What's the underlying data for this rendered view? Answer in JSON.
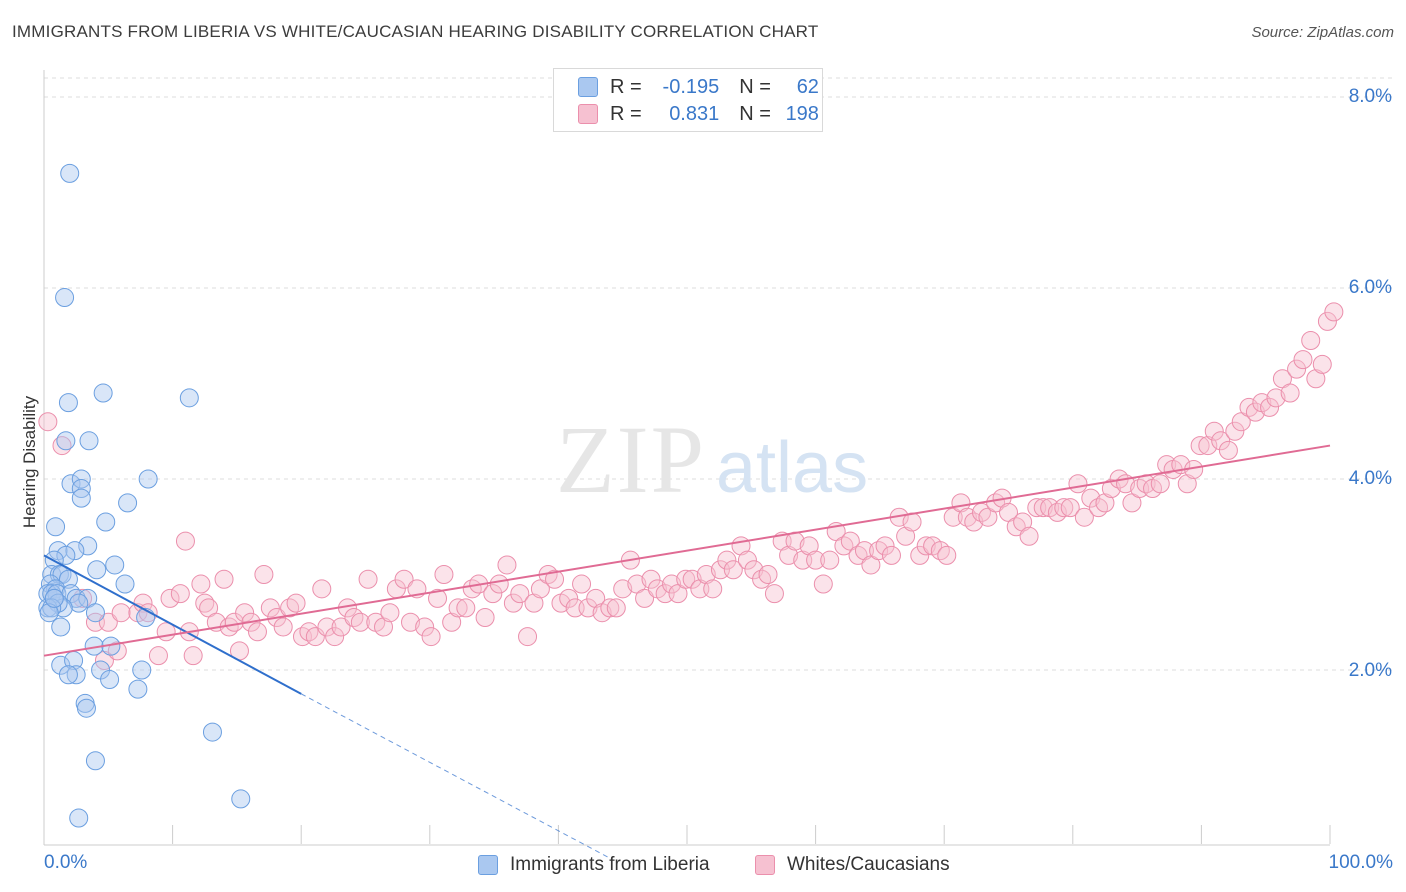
{
  "title": "IMMIGRANTS FROM LIBERIA VS WHITE/CAUCASIAN HEARING DISABILITY CORRELATION CHART",
  "source": "Source: ZipAtlas.com",
  "watermark": {
    "zip": "ZIP",
    "atlas": "atlas"
  },
  "legend": {
    "rows": [
      {
        "r_label": "R =",
        "r_value": "-0.195",
        "n_label": "N =",
        "n_value": "62"
      },
      {
        "r_label": "R =",
        "r_value": "0.831",
        "n_label": "N =",
        "n_value": "198"
      }
    ]
  },
  "bottom_legend": [
    "Immigrants from Liberia",
    "Whites/Caucasians"
  ],
  "colors": {
    "blue_fill": "#aac8f0",
    "blue_stroke": "#6b9fe0",
    "blue_line": "#2f6fcc",
    "pink_fill": "#f6c1d1",
    "pink_stroke": "#eb8fac",
    "pink_line": "#e06b94",
    "tick_text": "#3a78c9",
    "grid": "#dddddd"
  },
  "chart_data": {
    "type": "scatter",
    "ylabel": "Hearing Disability",
    "xlabel": "",
    "x_tick_labels": [
      "0.0%",
      "100.0%"
    ],
    "y_tick_labels": [
      "2.0%",
      "4.0%",
      "6.0%",
      "8.0%"
    ],
    "y_ticks": [
      2,
      4,
      6,
      8
    ],
    "xlim": [
      0,
      100
    ],
    "ylim": [
      0,
      8.3
    ],
    "grid": true,
    "series": [
      {
        "name": "Immigrants from Liberia",
        "trend": {
          "x0": 0,
          "y0": 3.2,
          "x1": 20,
          "y1": 1.75,
          "dash_to_x": 44,
          "dash_to_y": 0.03
        },
        "points": [
          [
            2.0,
            7.2
          ],
          [
            1.6,
            5.9
          ],
          [
            1.9,
            4.8
          ],
          [
            4.6,
            4.9
          ],
          [
            11.3,
            4.85
          ],
          [
            1.7,
            4.4
          ],
          [
            3.5,
            4.4
          ],
          [
            8.1,
            4.0
          ],
          [
            2.1,
            3.95
          ],
          [
            2.9,
            4.0
          ],
          [
            2.9,
            3.9
          ],
          [
            2.9,
            3.8
          ],
          [
            6.5,
            3.75
          ],
          [
            0.9,
            3.5
          ],
          [
            4.8,
            3.55
          ],
          [
            3.4,
            3.3
          ],
          [
            1.1,
            3.25
          ],
          [
            2.4,
            3.25
          ],
          [
            1.7,
            3.2
          ],
          [
            0.8,
            3.15
          ],
          [
            5.5,
            3.1
          ],
          [
            4.1,
            3.05
          ],
          [
            0.6,
            3.0
          ],
          [
            1.2,
            3.0
          ],
          [
            1.4,
            3.0
          ],
          [
            1.9,
            2.95
          ],
          [
            0.5,
            2.9
          ],
          [
            0.9,
            2.85
          ],
          [
            6.3,
            2.9
          ],
          [
            0.3,
            2.8
          ],
          [
            0.6,
            2.8
          ],
          [
            1.0,
            2.8
          ],
          [
            2.1,
            2.8
          ],
          [
            0.8,
            2.75
          ],
          [
            2.5,
            2.75
          ],
          [
            3.4,
            2.75
          ],
          [
            2.7,
            2.7
          ],
          [
            1.5,
            2.65
          ],
          [
            1.1,
            2.7
          ],
          [
            0.3,
            2.65
          ],
          [
            0.6,
            2.65
          ],
          [
            4.0,
            2.6
          ],
          [
            0.4,
            2.6
          ],
          [
            7.9,
            2.55
          ],
          [
            1.3,
            2.45
          ],
          [
            3.9,
            2.25
          ],
          [
            5.2,
            2.25
          ],
          [
            1.3,
            2.05
          ],
          [
            2.3,
            2.1
          ],
          [
            7.6,
            2.0
          ],
          [
            2.5,
            1.95
          ],
          [
            1.9,
            1.95
          ],
          [
            4.4,
            2.0
          ],
          [
            5.1,
            1.9
          ],
          [
            7.3,
            1.8
          ],
          [
            3.2,
            1.65
          ],
          [
            3.3,
            1.6
          ],
          [
            13.1,
            1.35
          ],
          [
            4.0,
            1.05
          ],
          [
            15.3,
            0.65
          ],
          [
            2.7,
            0.45
          ],
          [
            0.8,
            2.75
          ]
        ]
      },
      {
        "name": "Whites/Caucasians",
        "trend": {
          "x0": 0,
          "y0": 2.15,
          "x1": 100,
          "y1": 4.35
        },
        "points": [
          [
            0.3,
            4.6
          ],
          [
            1.4,
            4.35
          ],
          [
            3.0,
            2.75
          ],
          [
            4.0,
            2.5
          ],
          [
            4.7,
            2.1
          ],
          [
            5.0,
            2.5
          ],
          [
            5.7,
            2.2
          ],
          [
            6.0,
            2.6
          ],
          [
            7.3,
            2.6
          ],
          [
            7.7,
            2.7
          ],
          [
            8.1,
            2.6
          ],
          [
            8.9,
            2.15
          ],
          [
            9.5,
            2.4
          ],
          [
            9.8,
            2.75
          ],
          [
            10.6,
            2.8
          ],
          [
            11.0,
            3.35
          ],
          [
            11.3,
            2.4
          ],
          [
            11.6,
            2.15
          ],
          [
            12.2,
            2.9
          ],
          [
            12.5,
            2.7
          ],
          [
            12.8,
            2.65
          ],
          [
            13.4,
            2.5
          ],
          [
            14.0,
            2.95
          ],
          [
            14.4,
            2.45
          ],
          [
            14.8,
            2.5
          ],
          [
            15.2,
            2.2
          ],
          [
            15.6,
            2.6
          ],
          [
            16.1,
            2.5
          ],
          [
            16.6,
            2.4
          ],
          [
            17.1,
            3.0
          ],
          [
            17.6,
            2.65
          ],
          [
            18.1,
            2.55
          ],
          [
            18.6,
            2.45
          ],
          [
            19.1,
            2.65
          ],
          [
            19.6,
            2.7
          ],
          [
            20.1,
            2.35
          ],
          [
            20.6,
            2.4
          ],
          [
            21.1,
            2.35
          ],
          [
            21.6,
            2.85
          ],
          [
            22.0,
            2.45
          ],
          [
            22.6,
            2.35
          ],
          [
            23.1,
            2.45
          ],
          [
            23.6,
            2.65
          ],
          [
            24.1,
            2.55
          ],
          [
            24.6,
            2.5
          ],
          [
            25.2,
            2.95
          ],
          [
            25.8,
            2.5
          ],
          [
            26.4,
            2.45
          ],
          [
            26.9,
            2.6
          ],
          [
            27.4,
            2.85
          ],
          [
            28.0,
            2.95
          ],
          [
            28.5,
            2.5
          ],
          [
            29.0,
            2.85
          ],
          [
            29.6,
            2.45
          ],
          [
            30.1,
            2.35
          ],
          [
            30.6,
            2.75
          ],
          [
            31.1,
            3.0
          ],
          [
            31.7,
            2.5
          ],
          [
            32.2,
            2.65
          ],
          [
            32.8,
            2.65
          ],
          [
            33.3,
            2.85
          ],
          [
            33.8,
            2.9
          ],
          [
            34.3,
            2.55
          ],
          [
            34.9,
            2.8
          ],
          [
            35.4,
            2.9
          ],
          [
            36.0,
            3.1
          ],
          [
            36.5,
            2.7
          ],
          [
            37.0,
            2.8
          ],
          [
            37.6,
            2.35
          ],
          [
            38.1,
            2.7
          ],
          [
            38.6,
            2.85
          ],
          [
            39.2,
            3.0
          ],
          [
            39.7,
            2.95
          ],
          [
            40.2,
            2.7
          ],
          [
            40.8,
            2.75
          ],
          [
            41.3,
            2.65
          ],
          [
            41.8,
            2.9
          ],
          [
            42.3,
            2.65
          ],
          [
            42.9,
            2.75
          ],
          [
            43.4,
            2.6
          ],
          [
            44.0,
            2.65
          ],
          [
            44.5,
            2.65
          ],
          [
            45.0,
            2.85
          ],
          [
            45.6,
            3.15
          ],
          [
            46.1,
            2.9
          ],
          [
            46.7,
            2.75
          ],
          [
            47.2,
            2.95
          ],
          [
            47.7,
            2.85
          ],
          [
            48.3,
            2.8
          ],
          [
            48.8,
            2.9
          ],
          [
            49.3,
            2.8
          ],
          [
            49.9,
            2.95
          ],
          [
            50.4,
            2.95
          ],
          [
            51.0,
            2.85
          ],
          [
            51.5,
            3.0
          ],
          [
            52.0,
            2.85
          ],
          [
            52.6,
            3.05
          ],
          [
            53.1,
            3.15
          ],
          [
            53.6,
            3.05
          ],
          [
            54.2,
            3.3
          ],
          [
            54.7,
            3.15
          ],
          [
            55.2,
            3.05
          ],
          [
            55.8,
            2.95
          ],
          [
            56.3,
            3.0
          ],
          [
            56.8,
            2.8
          ],
          [
            57.4,
            3.35
          ],
          [
            57.9,
            3.2
          ],
          [
            58.4,
            3.35
          ],
          [
            59.0,
            3.15
          ],
          [
            59.5,
            3.3
          ],
          [
            60.0,
            3.15
          ],
          [
            60.6,
            2.9
          ],
          [
            61.1,
            3.15
          ],
          [
            61.6,
            3.45
          ],
          [
            62.2,
            3.3
          ],
          [
            62.7,
            3.35
          ],
          [
            63.3,
            3.2
          ],
          [
            63.8,
            3.25
          ],
          [
            64.3,
            3.1
          ],
          [
            64.9,
            3.25
          ],
          [
            65.4,
            3.3
          ],
          [
            65.9,
            3.2
          ],
          [
            66.5,
            3.6
          ],
          [
            67.0,
            3.4
          ],
          [
            67.5,
            3.55
          ],
          [
            68.1,
            3.2
          ],
          [
            68.6,
            3.3
          ],
          [
            69.1,
            3.3
          ],
          [
            69.7,
            3.25
          ],
          [
            70.2,
            3.2
          ],
          [
            70.7,
            3.6
          ],
          [
            71.3,
            3.75
          ],
          [
            71.8,
            3.6
          ],
          [
            72.3,
            3.55
          ],
          [
            72.9,
            3.65
          ],
          [
            73.4,
            3.6
          ],
          [
            74.0,
            3.75
          ],
          [
            74.5,
            3.8
          ],
          [
            75.0,
            3.65
          ],
          [
            75.6,
            3.5
          ],
          [
            76.1,
            3.55
          ],
          [
            76.6,
            3.4
          ],
          [
            77.2,
            3.7
          ],
          [
            77.7,
            3.7
          ],
          [
            78.2,
            3.7
          ],
          [
            78.8,
            3.65
          ],
          [
            79.3,
            3.7
          ],
          [
            79.8,
            3.7
          ],
          [
            80.4,
            3.95
          ],
          [
            80.9,
            3.6
          ],
          [
            81.4,
            3.8
          ],
          [
            82.0,
            3.7
          ],
          [
            82.5,
            3.75
          ],
          [
            83.0,
            3.9
          ],
          [
            83.6,
            4.0
          ],
          [
            84.1,
            3.95
          ],
          [
            84.6,
            3.75
          ],
          [
            85.2,
            3.9
          ],
          [
            85.7,
            3.95
          ],
          [
            86.2,
            3.9
          ],
          [
            86.8,
            3.95
          ],
          [
            87.3,
            4.15
          ],
          [
            87.8,
            4.1
          ],
          [
            88.4,
            4.15
          ],
          [
            88.9,
            3.95
          ],
          [
            89.4,
            4.1
          ],
          [
            89.9,
            4.35
          ],
          [
            90.5,
            4.35
          ],
          [
            91.0,
            4.5
          ],
          [
            91.5,
            4.4
          ],
          [
            92.1,
            4.3
          ],
          [
            92.6,
            4.5
          ],
          [
            93.1,
            4.6
          ],
          [
            93.7,
            4.75
          ],
          [
            94.2,
            4.7
          ],
          [
            94.7,
            4.8
          ],
          [
            95.3,
            4.75
          ],
          [
            95.8,
            4.85
          ],
          [
            96.3,
            5.05
          ],
          [
            96.9,
            4.9
          ],
          [
            97.4,
            5.15
          ],
          [
            97.9,
            5.25
          ],
          [
            98.5,
            5.45
          ],
          [
            98.9,
            5.05
          ],
          [
            99.4,
            5.2
          ],
          [
            99.8,
            5.65
          ],
          [
            100.3,
            5.75
          ]
        ]
      }
    ]
  }
}
